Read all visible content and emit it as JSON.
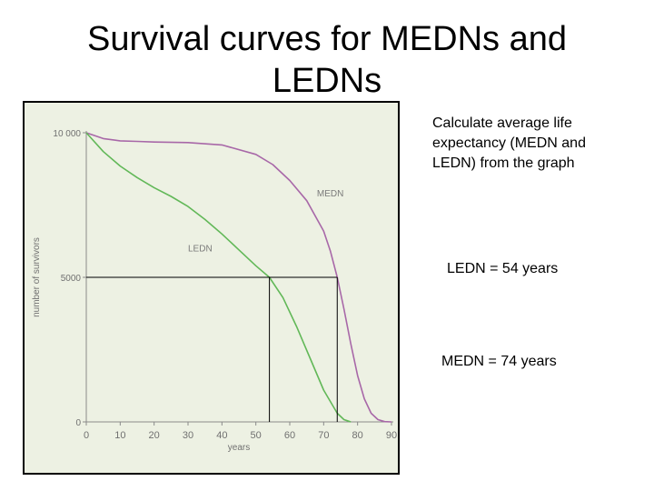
{
  "title_lines": [
    "Survival curves for MEDNs and",
    "LEDNs"
  ],
  "instruction": "Calculate average life expectancy (MEDN and LEDN) from the graph",
  "ledn_result": "LEDN = 54 years",
  "medn_result": "MEDN = 74 years",
  "chart_data": {
    "type": "line",
    "xlabel": "years",
    "ylabel": "number of survivors",
    "xlim": [
      0,
      90
    ],
    "ylim": [
      0,
      10000
    ],
    "x_ticks": [
      "0",
      "10",
      "20",
      "30",
      "40",
      "50",
      "60",
      "70",
      "80",
      "90"
    ],
    "y_ticks": [
      "0",
      "5000",
      "10 000"
    ],
    "grid": false,
    "series": [
      {
        "name": "MEDN",
        "color": "#a868a8",
        "x": [
          0,
          5,
          10,
          15,
          20,
          30,
          40,
          50,
          55,
          60,
          65,
          70,
          72,
          74,
          76,
          78,
          80,
          82,
          84,
          86,
          88,
          90
        ],
        "y": [
          10000,
          9800,
          9720,
          9700,
          9680,
          9660,
          9580,
          9250,
          8900,
          8350,
          7650,
          6600,
          5900,
          5000,
          3900,
          2700,
          1600,
          800,
          300,
          80,
          10,
          0
        ]
      },
      {
        "name": "LEDN",
        "color": "#62b858",
        "x": [
          0,
          5,
          10,
          15,
          20,
          25,
          30,
          35,
          40,
          45,
          50,
          54,
          58,
          62,
          66,
          70,
          74,
          76,
          78
        ],
        "y": [
          10000,
          9350,
          8850,
          8450,
          8100,
          7800,
          7450,
          7000,
          6500,
          5950,
          5400,
          5000,
          4300,
          3300,
          2200,
          1100,
          300,
          80,
          0
        ]
      }
    ],
    "guides": [
      {
        "label": "LEDN",
        "x": 54,
        "y": 5000
      },
      {
        "label": "MEDN",
        "x": 74,
        "y": 5000
      }
    ]
  }
}
